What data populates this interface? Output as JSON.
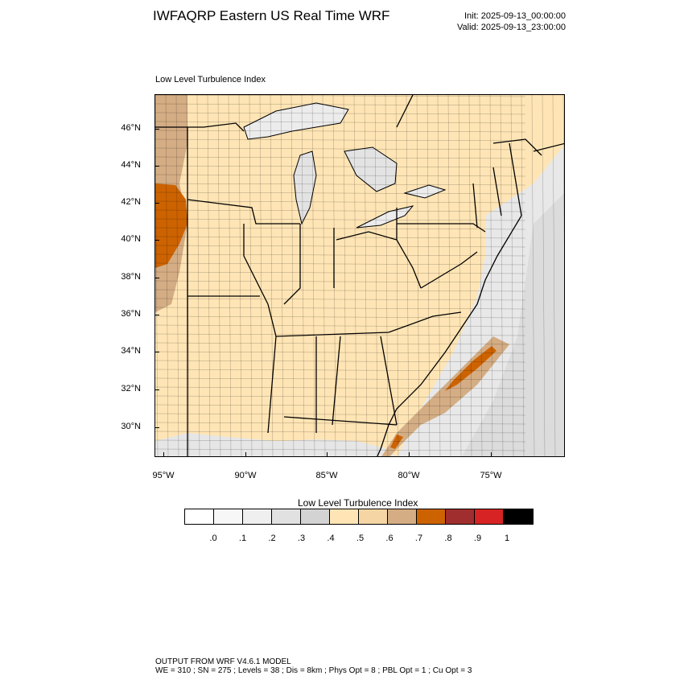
{
  "title": "IWFAQRP Eastern US Real Time WRF",
  "init": "Init: 2025-09-13_00:00:00",
  "valid": "Valid: 2025-09-13_23:00:00",
  "panel_label": "Low Level Turbulence Index",
  "lat_labels": [
    "46°N",
    "44°N",
    "42°N",
    "40°N",
    "38°N",
    "36°N",
    "34°N",
    "32°N",
    "30°N"
  ],
  "lon_labels": [
    "95°W",
    "90°W",
    "85°W",
    "80°W",
    "75°W"
  ],
  "colorbar": {
    "title": "Low Level Turbulence Index",
    "labels": [
      ".0",
      ".1",
      ".2",
      ".3",
      ".4",
      ".5",
      ".6",
      ".7",
      ".8",
      ".9",
      "1"
    ],
    "colors": [
      "#ffffff",
      "#f7f7f7",
      "#efefef",
      "#e1e1e1",
      "#d3d3d3",
      "#ffe5b5",
      "#f5d5a4",
      "#d4ad84",
      "#cd6300",
      "#a02e2e",
      "#d72323",
      "#000000"
    ]
  },
  "footer": {
    "line1": "OUTPUT FROM WRF V4.6.1 MODEL",
    "line2": "WE = 310 ; SN = 275 ; Levels = 38 ; Dis = 8km ; Phys Opt = 8 ; PBL Opt = 1 ; Cu Opt = 3"
  }
}
